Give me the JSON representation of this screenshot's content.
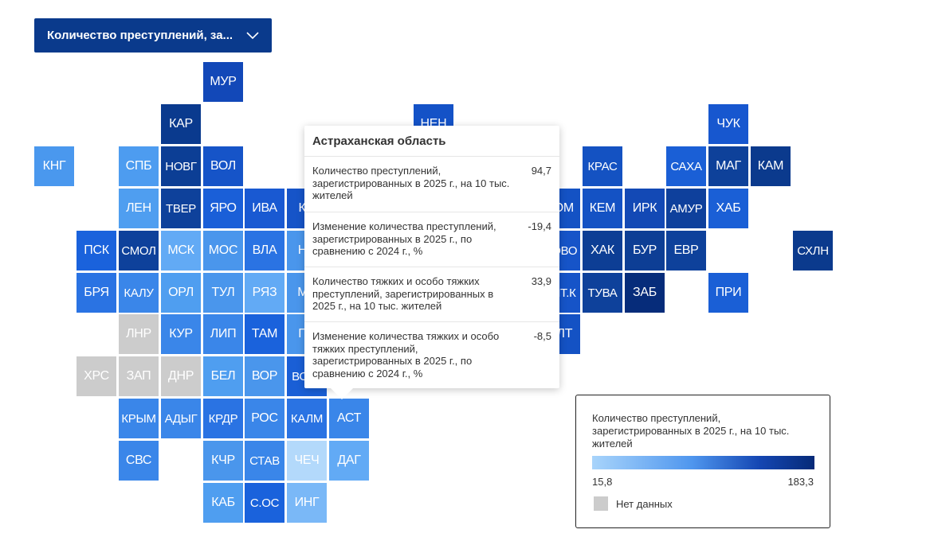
{
  "dropdown": {
    "label": "Количество преступлений, за...",
    "icon": "chevron-down-icon"
  },
  "tiles": [
    {
      "code": "МУР",
      "color": "#1248b8",
      "col": 5,
      "row": 0
    },
    {
      "code": "КАР",
      "color": "#0a3a8e",
      "col": 4,
      "row": 1
    },
    {
      "code": "НЕН",
      "color": "#1452c7",
      "col": 10,
      "row": 1
    },
    {
      "code": "ЧУК",
      "color": "#1757cf",
      "col": 17,
      "row": 1
    },
    {
      "code": "КНГ",
      "color": "#4a98ee",
      "col": 1,
      "row": 2
    },
    {
      "code": "СПБ",
      "color": "#4d9cf0",
      "col": 3,
      "row": 2
    },
    {
      "code": "НОВГ",
      "color": "#0c3e95",
      "col": 4,
      "row": 2
    },
    {
      "code": "ВОЛ",
      "color": "#1654c8",
      "col": 5,
      "row": 2
    },
    {
      "code": "КРАС",
      "color": "#1452c2",
      "col": 14,
      "row": 2
    },
    {
      "code": "САХА",
      "color": "#1a5fd6",
      "col": 16,
      "row": 2
    },
    {
      "code": "МАГ",
      "color": "#0e419a",
      "col": 17,
      "row": 2
    },
    {
      "code": "КАМ",
      "color": "#0b3a8d",
      "col": 18,
      "row": 2
    },
    {
      "code": "ЛЕН",
      "color": "#4f9ef0",
      "col": 3,
      "row": 3
    },
    {
      "code": "ТВЕР",
      "color": "#0e419b",
      "col": 4,
      "row": 3
    },
    {
      "code": "ЯРО",
      "color": "#1a5fd8",
      "col": 5,
      "row": 3
    },
    {
      "code": "ИВА",
      "color": "#1959d2",
      "col": 6,
      "row": 3
    },
    {
      "code": "КО",
      "color": "#1654c8",
      "col": 7,
      "row": 3
    },
    {
      "code": "ТОМ",
      "color": "#1452c4",
      "col": 13,
      "row": 3
    },
    {
      "code": "КЕМ",
      "color": "#1452c4",
      "col": 14,
      "row": 3
    },
    {
      "code": "ИРК",
      "color": "#1349b5",
      "col": 15,
      "row": 3
    },
    {
      "code": "АМУР",
      "color": "#0e409c",
      "col": 16,
      "row": 3
    },
    {
      "code": "ХАБ",
      "color": "#1a5fd6",
      "col": 17,
      "row": 3
    },
    {
      "code": "ПСК",
      "color": "#1a62dc",
      "col": 2,
      "row": 4
    },
    {
      "code": "СМОЛ",
      "color": "#0e419b",
      "col": 3,
      "row": 4
    },
    {
      "code": "МСК",
      "color": "#62aaf5",
      "col": 4,
      "row": 4
    },
    {
      "code": "МОС",
      "color": "#4a96ec",
      "col": 5,
      "row": 4
    },
    {
      "code": "ВЛА",
      "color": "#2a73e3",
      "col": 6,
      "row": 4
    },
    {
      "code": "НИ",
      "color": "#4a96ec",
      "col": 7,
      "row": 4
    },
    {
      "code": "НОВО",
      "color": "#1654c8",
      "col": 13,
      "row": 4
    },
    {
      "code": "ХАК",
      "color": "#0d3e95",
      "col": 14,
      "row": 4
    },
    {
      "code": "БУР",
      "color": "#0d3e95",
      "col": 15,
      "row": 4
    },
    {
      "code": "ЕВР",
      "color": "#0e419b",
      "col": 16,
      "row": 4
    },
    {
      "code": "СХЛН",
      "color": "#0b3a8d",
      "col": 19,
      "row": 4
    },
    {
      "code": "БРЯ",
      "color": "#2a73e3",
      "col": 2,
      "row": 5
    },
    {
      "code": "КАЛУ",
      "color": "#3a86e9",
      "col": 3,
      "row": 5
    },
    {
      "code": "ОРЛ",
      "color": "#4f9ef0",
      "col": 4,
      "row": 5
    },
    {
      "code": "ТУЛ",
      "color": "#4a96ec",
      "col": 5,
      "row": 5
    },
    {
      "code": "РЯЗ",
      "color": "#62aaf5",
      "col": 6,
      "row": 5
    },
    {
      "code": "МА",
      "color": "#4a96ec",
      "col": 7,
      "row": 5
    },
    {
      "code": "АЛТ.К",
      "color": "#1654c8",
      "col": 13,
      "row": 5
    },
    {
      "code": "ТУВА",
      "color": "#0e419b",
      "col": 14,
      "row": 5
    },
    {
      "code": "ЗАБ",
      "color": "#062c7a",
      "col": 15,
      "row": 5
    },
    {
      "code": "ПРИ",
      "color": "#1a5fd6",
      "col": 17,
      "row": 5
    },
    {
      "code": "ЛНР",
      "color": "#cccccc",
      "col": 3,
      "row": 6
    },
    {
      "code": "КУР",
      "color": "#3a86e9",
      "col": 4,
      "row": 6
    },
    {
      "code": "ЛИП",
      "color": "#3a86e9",
      "col": 5,
      "row": 6
    },
    {
      "code": "ТАМ",
      "color": "#1a62dc",
      "col": 6,
      "row": 6
    },
    {
      "code": "ПЕ",
      "color": "#4a96ec",
      "col": 7,
      "row": 6
    },
    {
      "code": "АЛТ",
      "color": "#1452c4",
      "col": 13,
      "row": 6
    },
    {
      "code": "ХРС",
      "color": "#cccccc",
      "col": 2,
      "row": 7
    },
    {
      "code": "ЗАП",
      "color": "#cccccc",
      "col": 3,
      "row": 7
    },
    {
      "code": "ДНР",
      "color": "#cccccc",
      "col": 4,
      "row": 7
    },
    {
      "code": "БЕЛ",
      "color": "#4f9ef0",
      "col": 5,
      "row": 7
    },
    {
      "code": "ВОР",
      "color": "#4a96ec",
      "col": 6,
      "row": 7
    },
    {
      "code": "ВОЛГ",
      "color": "#1a5fd6",
      "col": 7,
      "row": 7
    },
    {
      "code": "КРЫМ",
      "color": "#3a86e9",
      "col": 3,
      "row": 8
    },
    {
      "code": "АДЫГ",
      "color": "#3a86e9",
      "col": 4,
      "row": 8
    },
    {
      "code": "КРДР",
      "color": "#2a73e3",
      "col": 5,
      "row": 8
    },
    {
      "code": "РОС",
      "color": "#3a86e9",
      "col": 6,
      "row": 8
    },
    {
      "code": "КАЛМ",
      "color": "#2a73e3",
      "col": 7,
      "row": 8
    },
    {
      "code": "АСТ",
      "color": "#3a86e9",
      "col": 8,
      "row": 8
    },
    {
      "code": "СВС",
      "color": "#3a86e9",
      "col": 3,
      "row": 9
    },
    {
      "code": "КЧР",
      "color": "#4a96ec",
      "col": 5,
      "row": 9
    },
    {
      "code": "СТАВ",
      "color": "#3a86e9",
      "col": 6,
      "row": 9
    },
    {
      "code": "ЧЕЧ",
      "color": "#b3d9fb",
      "col": 7,
      "row": 9
    },
    {
      "code": "ДАГ",
      "color": "#62aaf5",
      "col": 8,
      "row": 9
    },
    {
      "code": "КАБ",
      "color": "#4f9ef0",
      "col": 5,
      "row": 10
    },
    {
      "code": "С.ОС",
      "color": "#1a62dc",
      "col": 6,
      "row": 10
    },
    {
      "code": "ИНГ",
      "color": "#7ab8f7",
      "col": 7,
      "row": 10
    }
  ],
  "tooltip": {
    "title": "Астраханская область",
    "rows": [
      {
        "label": "Количество преступлений, зарегистрированных в 2025 г., на 10 тыс. жителей",
        "value": "94,7"
      },
      {
        "label": "Изменение количества преступлений, зарегистрированных в 2025 г., по сравнению с 2024 г., %",
        "value": "-19,4"
      },
      {
        "label": "Количество тяжких и особо тяжких преступлений, зарегистрированных в 2025 г., на 10 тыс. жителей",
        "value": "33,9"
      },
      {
        "label": "Изменение количества тяжких и особо тяжких преступлений, зарегистрированных в 2025 г., по сравнению с 2024 г., %",
        "value": "-8,5"
      }
    ]
  },
  "legend": {
    "title": "Количество преступлений, зарегистрированных в 2025 г., на 10 тыс. жителей",
    "min": "15,8",
    "max": "183,3",
    "no_data_label": "Нет данных",
    "no_data_color": "#cccccc",
    "gradient": [
      "#a8d4fb",
      "#062a78"
    ]
  }
}
